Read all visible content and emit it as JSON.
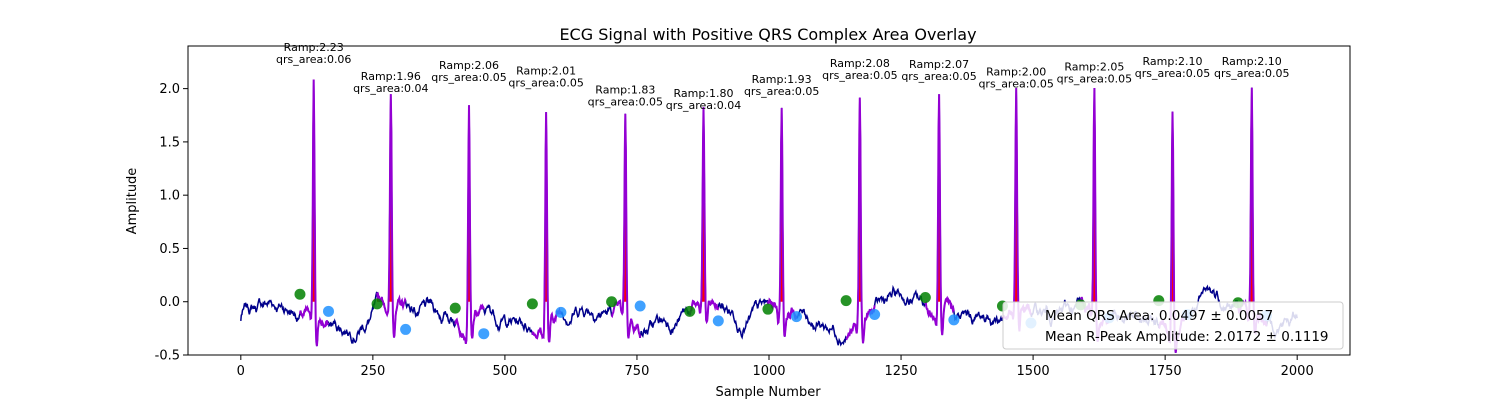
{
  "chart_data": {
    "type": "line",
    "title": "ECG Signal with Positive QRS Complex Area Overlay",
    "xlabel": "Sample Number",
    "ylabel": "Amplitude",
    "xlim": [
      -100,
      2100
    ],
    "ylim": [
      -0.5,
      2.4
    ],
    "xticks": [
      0,
      250,
      500,
      750,
      1000,
      1250,
      1500,
      1750,
      2000
    ],
    "yticks": [
      -0.5,
      0.0,
      0.5,
      1.0,
      1.5,
      2.0
    ],
    "colors": {
      "signal": "#00008b",
      "qrs_segment": "#9400d3",
      "qrs_area": "#ff0000",
      "onset_marker": "#008000",
      "offset_marker": "#1e90ff"
    },
    "r_peaks": [
      {
        "x": 138,
        "amplitude": 2.23,
        "label_ramp": "Ramp:2.23",
        "label_area": "qrs_area:0.06",
        "onset": {
          "x": 112,
          "y": 0.07
        },
        "offset": {
          "x": 166,
          "y": -0.09
        }
      },
      {
        "x": 284,
        "amplitude": 1.96,
        "label_ramp": "Ramp:1.96",
        "label_area": "qrs_area:0.04",
        "onset": {
          "x": 258,
          "y": -0.02
        },
        "offset": {
          "x": 312,
          "y": -0.26
        }
      },
      {
        "x": 432,
        "amplitude": 2.06,
        "label_ramp": "Ramp:2.06",
        "label_area": "qrs_area:0.05",
        "onset": {
          "x": 406,
          "y": -0.06
        },
        "offset": {
          "x": 460,
          "y": -0.3
        }
      },
      {
        "x": 578,
        "amplitude": 2.01,
        "label_ramp": "Ramp:2.01",
        "label_area": "qrs_area:0.05",
        "onset": {
          "x": 552,
          "y": -0.02
        },
        "offset": {
          "x": 606,
          "y": -0.1
        }
      },
      {
        "x": 728,
        "amplitude": 1.83,
        "label_ramp": "Ramp:1.83",
        "label_area": "qrs_area:0.05",
        "onset": {
          "x": 702,
          "y": 0.0
        },
        "offset": {
          "x": 756,
          "y": -0.04
        }
      },
      {
        "x": 876,
        "amplitude": 1.8,
        "label_ramp": "Ramp:1.80",
        "label_area": "qrs_area:0.04",
        "onset": {
          "x": 850,
          "y": -0.09
        },
        "offset": {
          "x": 904,
          "y": -0.18
        }
      },
      {
        "x": 1024,
        "amplitude": 1.93,
        "label_ramp": "Ramp:1.93",
        "label_area": "qrs_area:0.05",
        "onset": {
          "x": 998,
          "y": -0.07
        },
        "offset": {
          "x": 1052,
          "y": -0.14
        }
      },
      {
        "x": 1172,
        "amplitude": 2.08,
        "label_ramp": "Ramp:2.08",
        "label_area": "qrs_area:0.05",
        "onset": {
          "x": 1146,
          "y": 0.01
        },
        "offset": {
          "x": 1200,
          "y": -0.12
        }
      },
      {
        "x": 1322,
        "amplitude": 2.07,
        "label_ramp": "Ramp:2.07",
        "label_area": "qrs_area:0.05",
        "onset": {
          "x": 1296,
          "y": 0.04
        },
        "offset": {
          "x": 1350,
          "y": -0.17
        }
      },
      {
        "x": 1468,
        "amplitude": 2.0,
        "label_ramp": "Ramp:2.00",
        "label_area": "qrs_area:0.05",
        "onset": {
          "x": 1442,
          "y": -0.04
        },
        "offset": {
          "x": 1496,
          "y": -0.2
        }
      },
      {
        "x": 1616,
        "amplitude": 2.05,
        "label_ramp": "Ramp:2.05",
        "label_area": "qrs_area:0.05",
        "onset": {
          "x": 1590,
          "y": -0.03
        },
        "offset": {
          "x": 1644,
          "y": -0.15
        }
      },
      {
        "x": 1764,
        "amplitude": 2.1,
        "label_ramp": "Ramp:2.10",
        "label_area": "qrs_area:0.05",
        "onset": {
          "x": 1738,
          "y": 0.01
        },
        "offset": {
          "x": 1792,
          "y": -0.12
        }
      },
      {
        "x": 1914,
        "amplitude": 2.1,
        "label_ramp": "Ramp:2.10",
        "label_area": "qrs_area:0.05",
        "onset": {
          "x": 1888,
          "y": -0.01
        },
        "offset": {
          "x": 1942,
          "y": -0.13
        }
      }
    ],
    "legend": {
      "placement": "lower right",
      "entries": [
        "Mean QRS Area: 0.0497 ± 0.0057",
        "Mean R-Peak Amplitude: 2.0172 ± 0.1119"
      ]
    },
    "grid": false
  }
}
